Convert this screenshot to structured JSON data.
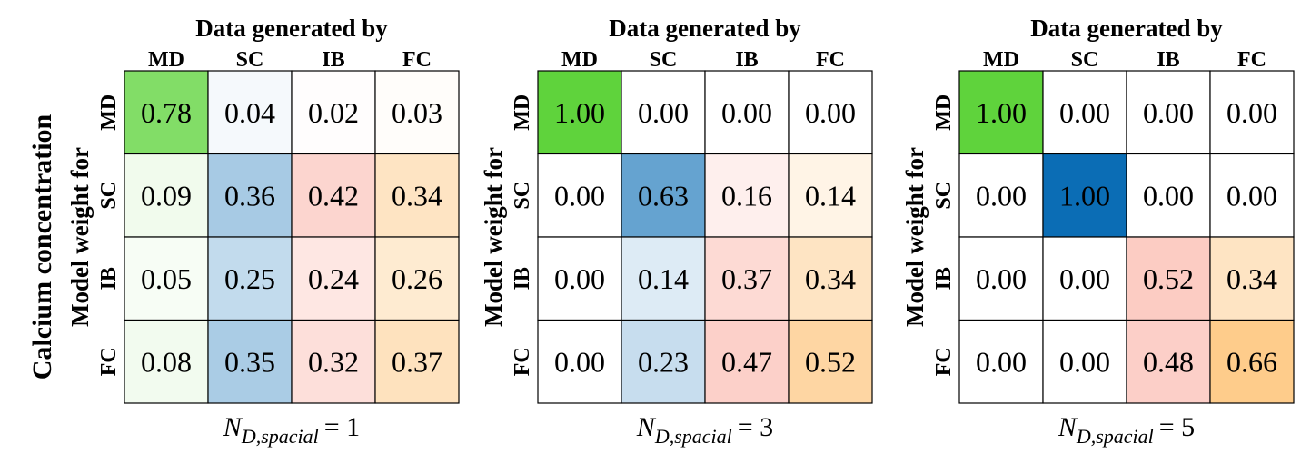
{
  "left_label": "Calcium concentration",
  "colors": {
    "MD": "#5fd33c",
    "SC": "#0b6db5",
    "IB": "#f99c8c",
    "FC": "#fdb14f"
  },
  "chart_data": [
    {
      "type": "heatmap",
      "title": "Data generated by",
      "ylabel": "Model weight for",
      "xlabel_prefix": "N",
      "xlabel_sub": "D,spacial",
      "xlabel_suffix": "= 1",
      "col_labels": [
        "MD",
        "SC",
        "IB",
        "FC"
      ],
      "row_labels": [
        "MD",
        "SC",
        "IB",
        "FC"
      ],
      "values": [
        [
          0.78,
          0.04,
          0.02,
          0.03
        ],
        [
          0.09,
          0.36,
          0.42,
          0.34
        ],
        [
          0.05,
          0.25,
          0.24,
          0.26
        ],
        [
          0.08,
          0.35,
          0.32,
          0.37
        ]
      ]
    },
    {
      "type": "heatmap",
      "title": "Data generated by",
      "ylabel": "Model weight for",
      "xlabel_prefix": "N",
      "xlabel_sub": "D,spacial",
      "xlabel_suffix": "= 3",
      "col_labels": [
        "MD",
        "SC",
        "IB",
        "FC"
      ],
      "row_labels": [
        "MD",
        "SC",
        "IB",
        "FC"
      ],
      "values": [
        [
          1.0,
          0.0,
          0.0,
          0.0
        ],
        [
          0.0,
          0.63,
          0.16,
          0.14
        ],
        [
          0.0,
          0.14,
          0.37,
          0.34
        ],
        [
          0.0,
          0.23,
          0.47,
          0.52
        ]
      ]
    },
    {
      "type": "heatmap",
      "title": "Data generated by",
      "ylabel": "Model weight for",
      "xlabel_prefix": "N",
      "xlabel_sub": "D,spacial",
      "xlabel_suffix": "= 5",
      "col_labels": [
        "MD",
        "SC",
        "IB",
        "FC"
      ],
      "row_labels": [
        "MD",
        "SC",
        "IB",
        "FC"
      ],
      "values": [
        [
          1.0,
          0.0,
          0.0,
          0.0
        ],
        [
          0.0,
          1.0,
          0.0,
          0.0
        ],
        [
          0.0,
          0.0,
          0.52,
          0.34
        ],
        [
          0.0,
          0.0,
          0.48,
          0.66
        ]
      ]
    }
  ]
}
